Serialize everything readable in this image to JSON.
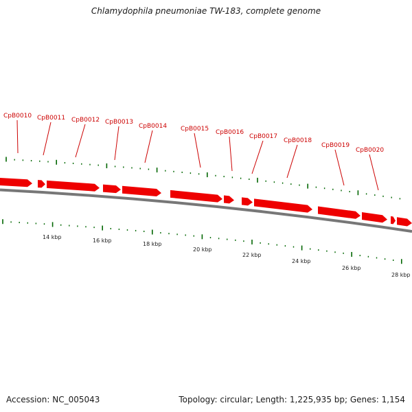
{
  "title": "Chlamydophila pneumoniae TW-183, complete genome",
  "accession": "Accession: NC_005043",
  "summary": "Topology: circular; Length: 1,225,935 bp; Genes: 1,154",
  "colors": {
    "gene": "#ee0000",
    "label": "#cc0000",
    "tick": "#006600",
    "backbone": "#777777"
  },
  "genes": [
    {
      "label": "CpB0010"
    },
    {
      "label": "CpB0011"
    },
    {
      "label": "CpB0012"
    },
    {
      "label": "CpB0013"
    },
    {
      "label": "CpB0014"
    },
    {
      "label": "CpB0015"
    },
    {
      "label": "CpB0016"
    },
    {
      "label": "CpB0017"
    },
    {
      "label": "CpB0018"
    },
    {
      "label": "CpB0019"
    },
    {
      "label": "CpB0020"
    }
  ],
  "scale_labels": [
    "14 kbp",
    "16 kbp",
    "18 kbp",
    "20 kbp",
    "22 kbp",
    "24 kbp",
    "26 kbp",
    "28 kbp"
  ]
}
